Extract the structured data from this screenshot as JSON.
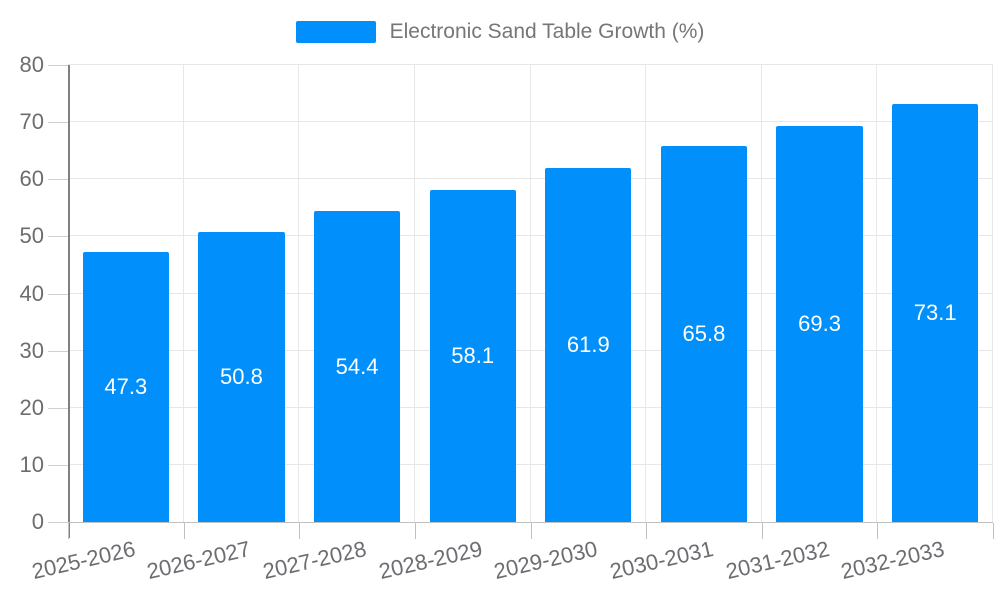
{
  "chart_data": {
    "type": "bar",
    "title": "Electronic Sand Table Growth (%)",
    "legend": {
      "position": "top-center",
      "items": [
        {
          "label": "Electronic Sand Table Growth (%)",
          "color": "#008FFB"
        }
      ]
    },
    "categories": [
      "2025-2026",
      "2026-2027",
      "2027-2028",
      "2028-2029",
      "2029-2030",
      "2030-2031",
      "2031-2032",
      "2032-2033"
    ],
    "series": [
      {
        "name": "Electronic Sand Table Growth (%)",
        "values": [
          47.3,
          50.8,
          54.4,
          58.1,
          61.9,
          65.8,
          69.3,
          73.1
        ]
      }
    ],
    "value_labels": [
      "47.3",
      "50.8",
      "54.4",
      "58.1",
      "61.9",
      "65.8",
      "69.3",
      "73.1"
    ],
    "xlabel": "",
    "ylabel": "",
    "ylim": [
      0,
      80
    ],
    "yticks": [
      0,
      10,
      20,
      30,
      40,
      50,
      60,
      70,
      80
    ],
    "grid": true,
    "colors": {
      "bar": "#008FFB",
      "value_label": "#ffffff",
      "gridline": "#e7e7e7",
      "axis_text": "#6b6d70",
      "legend_text": "#747679"
    }
  }
}
